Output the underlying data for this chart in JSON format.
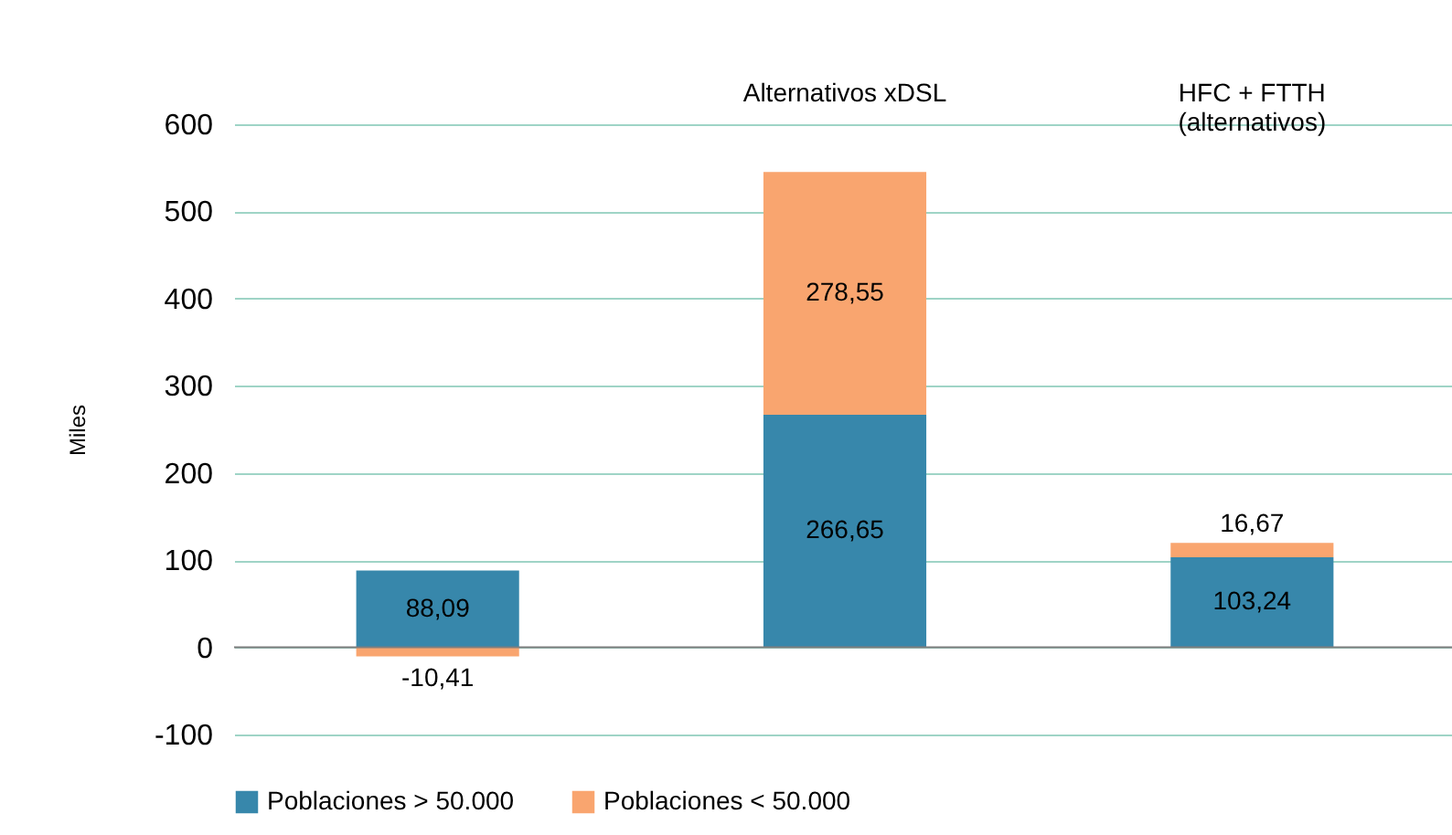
{
  "chart_data": {
    "type": "bar",
    "stacked": true,
    "categories": [
      null,
      "Alternativos xDSL",
      "HFC + FTTH (alternativos)"
    ],
    "series": [
      {
        "name": "Poblaciones > 50.000",
        "color": "#3787ab",
        "values": [
          88.09,
          266.65,
          103.24
        ],
        "value_labels": [
          "88,09",
          "266,65",
          "103,24"
        ]
      },
      {
        "name": "Poblaciones < 50.000",
        "color": "#f9a56f",
        "values": [
          -10.41,
          278.55,
          16.67
        ],
        "value_labels": [
          "-10,41",
          "278,55",
          "16,67"
        ]
      }
    ],
    "ylabel": "Miles",
    "ylim": [
      -100,
      600
    ],
    "yticks": [
      -100,
      0,
      100,
      200,
      300,
      400,
      500,
      600
    ],
    "grid": "y",
    "legend": "bottom"
  }
}
